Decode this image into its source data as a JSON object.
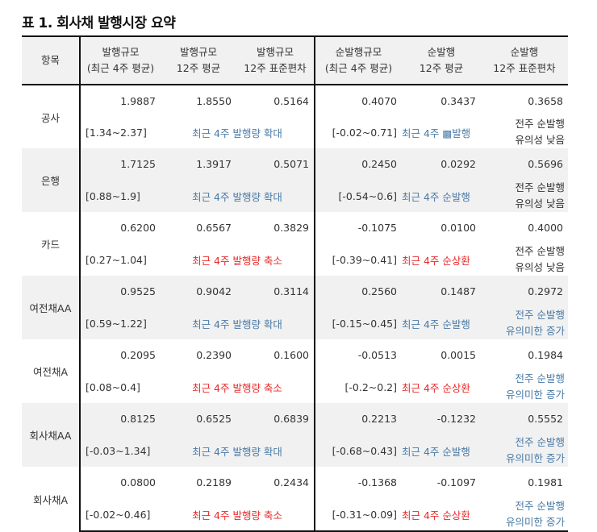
{
  "title": "표 1. 회사채 발행시장 요약",
  "colors": {
    "up": "#4a7aa6",
    "down": "#e82a2a",
    "neutral": "#333333",
    "header_bg": "#f1f1f1"
  },
  "headers": [
    {
      "line1": "항목",
      "line2": ""
    },
    {
      "line1": "발행규모",
      "line2": "(최근 4주 평균)"
    },
    {
      "line1": "발행규모",
      "line2": "12주 평균"
    },
    {
      "line1": "발행규모",
      "line2": "12주 표준편차"
    },
    {
      "line1": "순발행규모",
      "line2": "(최근 4주 평균)"
    },
    {
      "line1": "순발행",
      "line2": "12주 평균"
    },
    {
      "line1": "순발행",
      "line2": "12주 표준편차"
    }
  ],
  "rows": [
    {
      "item": "공사",
      "issue_4w": "1.9887",
      "issue_12w_avg": "1.8550",
      "issue_12w_std": "0.5164",
      "issue_range": "[1.34~2.37]",
      "issue_note": "최근 4주 발행량 확대",
      "issue_note_tone": "up",
      "net_4w": "0.4070",
      "net_12w_avg": "0.3437",
      "net_12w_std": "0.3658",
      "net_range": "[-0.02~0.71]",
      "net_note": "최근 4주 ▩발행",
      "net_note_tone": "up",
      "signif_1": "전주 순발행",
      "signif_2": "유의성 낮음",
      "signif_tone": "neutral"
    },
    {
      "item": "은행",
      "issue_4w": "1.7125",
      "issue_12w_avg": "1.3917",
      "issue_12w_std": "0.5071",
      "issue_range": "[0.88~1.9]",
      "issue_note": "최근 4주 발행량 확대",
      "issue_note_tone": "up",
      "net_4w": "0.2450",
      "net_12w_avg": "0.0292",
      "net_12w_std": "0.5696",
      "net_range": "[-0.54~0.6]",
      "net_note": "최근 4주 순발행",
      "net_note_tone": "up",
      "signif_1": "전주 순발행",
      "signif_2": "유의성 낮음",
      "signif_tone": "neutral"
    },
    {
      "item": "카드",
      "issue_4w": "0.6200",
      "issue_12w_avg": "0.6567",
      "issue_12w_std": "0.3829",
      "issue_range": "[0.27~1.04]",
      "issue_note": "최근 4주 발행량 축소",
      "issue_note_tone": "down",
      "net_4w": "-0.1075",
      "net_12w_avg": "0.0100",
      "net_12w_std": "0.4000",
      "net_range": "[-0.39~0.41]",
      "net_note": "최근 4주 순상환",
      "net_note_tone": "down",
      "signif_1": "전주 순발행",
      "signif_2": "유의성 낮음",
      "signif_tone": "neutral"
    },
    {
      "item": "여전채AA",
      "issue_4w": "0.9525",
      "issue_12w_avg": "0.9042",
      "issue_12w_std": "0.3114",
      "issue_range": "[0.59~1.22]",
      "issue_note": "최근 4주 발행량 확대",
      "issue_note_tone": "up",
      "net_4w": "0.2560",
      "net_12w_avg": "0.1487",
      "net_12w_std": "0.2972",
      "net_range": "[-0.15~0.45]",
      "net_note": "최근 4주 순발행",
      "net_note_tone": "up",
      "signif_1": "전주 순발행",
      "signif_2": "유의미한 증가",
      "signif_tone": "up"
    },
    {
      "item": "여전채A",
      "issue_4w": "0.2095",
      "issue_12w_avg": "0.2390",
      "issue_12w_std": "0.1600",
      "issue_range": "[0.08~0.4]",
      "issue_note": "최근 4주 발행량 축소",
      "issue_note_tone": "down",
      "net_4w": "-0.0513",
      "net_12w_avg": "0.0015",
      "net_12w_std": "0.1984",
      "net_range": "[-0.2~0.2]",
      "net_note": "최근 4주 순상환",
      "net_note_tone": "down",
      "signif_1": "전주 순발행",
      "signif_2": "유의미한 증가",
      "signif_tone": "up"
    },
    {
      "item": "회사채AA",
      "issue_4w": "0.8125",
      "issue_12w_avg": "0.6525",
      "issue_12w_std": "0.6839",
      "issue_range": "[-0.03~1.34]",
      "issue_note": "최근 4주 발행량 확대",
      "issue_note_tone": "up",
      "net_4w": "0.2213",
      "net_12w_avg": "-0.1232",
      "net_12w_std": "0.5552",
      "net_range": "[-0.68~0.43]",
      "net_note": "최근 4주 순발행",
      "net_note_tone": "up",
      "signif_1": "전주 순발행",
      "signif_2": "유의미한 증가",
      "signif_tone": "up"
    },
    {
      "item": "회사채A",
      "issue_4w": "0.0800",
      "issue_12w_avg": "0.2189",
      "issue_12w_std": "0.2434",
      "issue_range": "[-0.02~0.46]",
      "issue_note": "최근 4주 발행량 축소",
      "issue_note_tone": "down",
      "net_4w": "-0.1368",
      "net_12w_avg": "-0.1097",
      "net_12w_std": "0.1981",
      "net_range": "[-0.31~0.09]",
      "net_note": "최근 4주 순상환",
      "net_note_tone": "down",
      "signif_1": "전주 순발행",
      "signif_2": "유의미한 증가",
      "signif_tone": "up"
    }
  ]
}
